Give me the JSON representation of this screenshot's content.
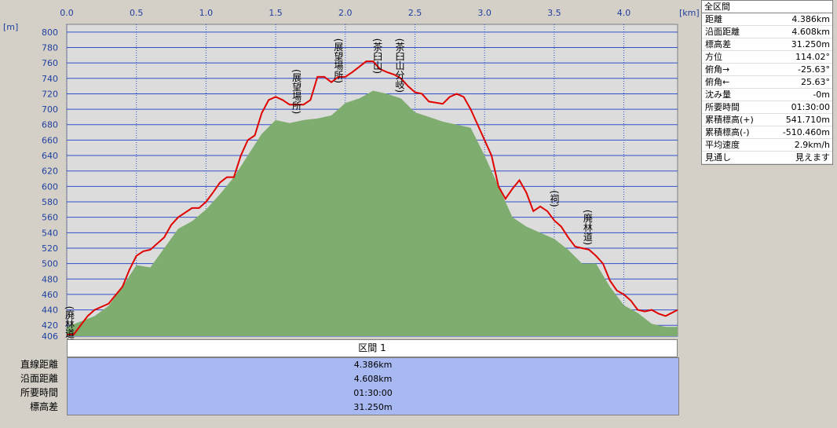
{
  "chart_data": {
    "type": "area",
    "x_unit": "[km]",
    "y_unit": "[m]",
    "xlim": [
      0,
      4.386
    ],
    "ylim": [
      406,
      810
    ],
    "x_ticks": [
      "0.0",
      "0.5",
      "1.0",
      "1.5",
      "2.0",
      "2.5",
      "3.0",
      "3.5",
      "4.0"
    ],
    "y_ticks": [
      "800",
      "780",
      "760",
      "740",
      "720",
      "700",
      "680",
      "660",
      "640",
      "620",
      "600",
      "580",
      "560",
      "540",
      "520",
      "500",
      "480",
      "460",
      "440",
      "420",
      "406"
    ],
    "series": [
      {
        "color": "#e00000",
        "x": [
          0,
          0.05,
          0.1,
          0.15,
          0.2,
          0.3,
          0.4,
          0.45,
          0.5,
          0.55,
          0.6,
          0.7,
          0.75,
          0.8,
          0.9,
          0.95,
          1.0,
          1.05,
          1.1,
          1.15,
          1.2,
          1.25,
          1.3,
          1.35,
          1.4,
          1.45,
          1.5,
          1.55,
          1.6,
          1.7,
          1.75,
          1.8,
          1.85,
          1.9,
          1.95,
          2.0,
          2.05,
          2.1,
          2.15,
          2.2,
          2.25,
          2.3,
          2.35,
          2.4,
          2.45,
          2.5,
          2.55,
          2.6,
          2.7,
          2.75,
          2.8,
          2.85,
          2.9,
          2.95,
          3.0,
          3.05,
          3.1,
          3.15,
          3.2,
          3.25,
          3.3,
          3.35,
          3.4,
          3.45,
          3.5,
          3.55,
          3.6,
          3.65,
          3.7,
          3.75,
          3.8,
          3.85,
          3.9,
          3.95,
          4.0,
          4.05,
          4.1,
          4.15,
          4.2,
          4.25,
          4.3,
          4.386
        ],
        "y": [
          408,
          408,
          420,
          432,
          440,
          448,
          470,
          492,
          510,
          516,
          518,
          534,
          550,
          560,
          572,
          572,
          580,
          592,
          605,
          612,
          612,
          640,
          660,
          666,
          695,
          712,
          716,
          712,
          706,
          706,
          712,
          742,
          742,
          735,
          742,
          742,
          748,
          755,
          762,
          762,
          752,
          748,
          745,
          740,
          730,
          722,
          720,
          710,
          707,
          716,
          720,
          716,
          700,
          680,
          660,
          640,
          600,
          584,
          597,
          608,
          592,
          568,
          574,
          568,
          556,
          548,
          534,
          522,
          520,
          518,
          510,
          500,
          478,
          465,
          460,
          452,
          440,
          438,
          440,
          435,
          432,
          440
        ]
      }
    ],
    "profile_fill": {
      "color": "#7fad6f",
      "x": [
        0,
        0.1,
        0.2,
        0.3,
        0.4,
        0.5,
        0.6,
        0.7,
        0.8,
        0.9,
        1.0,
        1.1,
        1.2,
        1.3,
        1.4,
        1.5,
        1.6,
        1.7,
        1.8,
        1.9,
        2.0,
        2.1,
        2.2,
        2.3,
        2.4,
        2.5,
        2.6,
        2.7,
        2.8,
        2.9,
        3.0,
        3.1,
        3.2,
        3.3,
        3.4,
        3.5,
        3.6,
        3.7,
        3.8,
        3.9,
        4.0,
        4.1,
        4.2,
        4.3,
        4.386
      ],
      "y": [
        418,
        425,
        432,
        445,
        470,
        498,
        495,
        520,
        545,
        555,
        570,
        590,
        612,
        640,
        668,
        686,
        682,
        686,
        688,
        692,
        708,
        714,
        724,
        720,
        714,
        696,
        690,
        684,
        680,
        676,
        640,
        600,
        560,
        548,
        540,
        532,
        518,
        500,
        500,
        470,
        446,
        436,
        422,
        418,
        418
      ]
    },
    "annotations": [
      {
        "text": "(廃林道起点)",
        "x": 0.02,
        "y": 445
      },
      {
        "text": "(展望場所)",
        "x": 1.65,
        "y": 752
      },
      {
        "text": "(展望場所)",
        "x": 1.95,
        "y": 792
      },
      {
        "text": "(茶臼山)",
        "x": 2.23,
        "y": 792
      },
      {
        "text": "(茶臼山分岐)",
        "x": 2.39,
        "y": 792
      },
      {
        "text": "(祠)",
        "x": 3.5,
        "y": 595
      },
      {
        "text": "(廃林道)",
        "x": 3.74,
        "y": 570
      }
    ]
  },
  "side_panel": {
    "header": "全区間",
    "stats": [
      {
        "label": "距離",
        "value": "4.386km"
      },
      {
        "label": "沿面距離",
        "value": "4.608km"
      },
      {
        "label": "標高差",
        "value": "31.250m"
      },
      {
        "label": "方位",
        "value": "114.02°"
      },
      {
        "label": "俯角→",
        "value": "-25.63°"
      },
      {
        "label": "俯角←",
        "value": "25.63°"
      },
      {
        "label": "沈み量",
        "value": "-0m"
      },
      {
        "label": "所要時間",
        "value": "01:30:00"
      },
      {
        "label": "累積標高(+)",
        "value": "541.710m"
      },
      {
        "label": "累積標高(-)",
        "value": "-510.460m"
      },
      {
        "label": "平均速度",
        "value": "2.9km/h"
      },
      {
        "label": "見通し",
        "value": "見えます"
      }
    ]
  },
  "section": {
    "title": "区間 1",
    "labels": [
      "直線距離",
      "沿面距離",
      "所要時間",
      "標高差"
    ],
    "values": [
      "4.386km",
      "4.608km",
      "01:30:00",
      "31.250m"
    ]
  }
}
